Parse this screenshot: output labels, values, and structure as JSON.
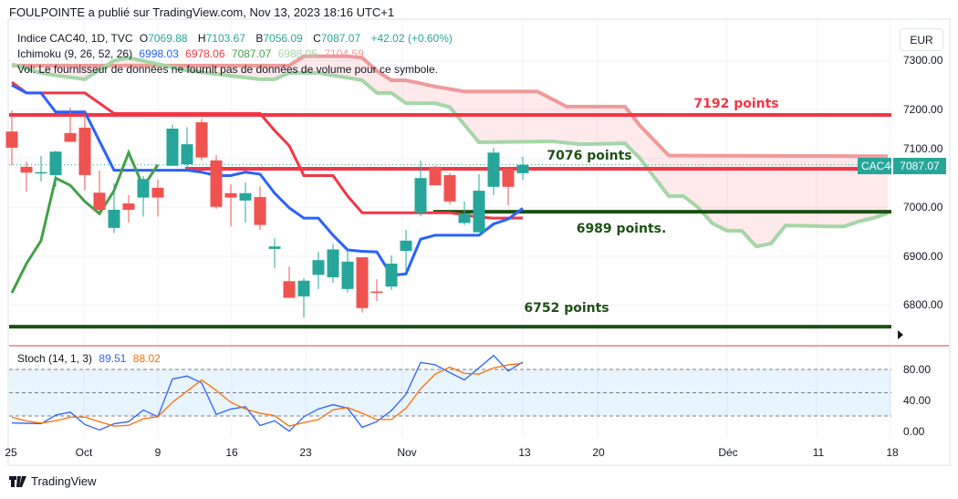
{
  "header": {
    "published": "FOULPOINTE a publié sur TradingView.com, Nov 13, 2023 18:16 UTC+1"
  },
  "legend": {
    "symbol": "Indice CAC40, 1D, TVC",
    "o_label": "O",
    "o": "7069.88",
    "h_label": "H",
    "h": "7103.67",
    "b_label": "B",
    "b": "7056.09",
    "c_label": "C",
    "c": "7087.07",
    "change": "+42.02 (+0.60%)",
    "ichimoku_label": "Ichimoku (9, 26, 52, 26)",
    "ichimoku_values": [
      "6998.03",
      "6978.06",
      "7087.07",
      "6988.05",
      "7104.59"
    ],
    "vol_note": "Vol: Le fournisseur de données ne fournit pas de données de volume pour ce symbole.",
    "stoch_label": "Stoch (14, 1, 3)",
    "stoch_k": "89.51",
    "stoch_d": "88.02"
  },
  "currency_button": "EUR",
  "price_tag": {
    "symbol": "CAC40",
    "value": "7087.07"
  },
  "footer": {
    "brand": "TradingView"
  },
  "colors": {
    "up": "#26a69a",
    "down": "#ef5350",
    "tenkan": "#2962ff",
    "kijun": "#f23645",
    "chikou": "#43a047",
    "senkou_a": "#a5d6a7",
    "senkou_b": "#ef9a9a",
    "stoch_k": "#2962ff",
    "stoch_d": "#ff6d00",
    "level_dark": "#1e5016"
  },
  "chart_data": [
    {
      "type": "candlestick",
      "ylim": [
        6730,
        7320
      ],
      "price_ticks": [
        "7300.00",
        "7200.00",
        "7100.00",
        "7000.00",
        "6900.00",
        "6800.00"
      ],
      "time_ticks": [
        "25",
        "Oct",
        "9",
        "16",
        "23",
        "Nov",
        "13",
        "20",
        "Déc",
        "11",
        "18"
      ],
      "dates": [
        "2023-09-25",
        "2023-09-26",
        "2023-09-27",
        "2023-09-28",
        "2023-09-29",
        "2023-10-02",
        "2023-10-03",
        "2023-10-04",
        "2023-10-05",
        "2023-10-06",
        "2023-10-09",
        "2023-10-10",
        "2023-10-11",
        "2023-10-12",
        "2023-10-13",
        "2023-10-16",
        "2023-10-17",
        "2023-10-18",
        "2023-10-19",
        "2023-10-20",
        "2023-10-23",
        "2023-10-24",
        "2023-10-25",
        "2023-10-26",
        "2023-10-27",
        "2023-10-30",
        "2023-10-31",
        "2023-11-01",
        "2023-11-02",
        "2023-11-03",
        "2023-11-06",
        "2023-11-07",
        "2023-11-08",
        "2023-11-09",
        "2023-11-10",
        "2023-11-13"
      ],
      "ohlc": [
        [
          7155,
          7198,
          7086,
          7122
        ],
        [
          7083,
          7094,
          7032,
          7071
        ],
        [
          7070,
          7105,
          7053,
          7072
        ],
        [
          7066,
          7116,
          7042,
          7114
        ],
        [
          7152,
          7204,
          7134,
          7134
        ],
        [
          7163,
          7196,
          7035,
          7066
        ],
        [
          7030,
          7075,
          6988,
          6995
        ],
        [
          6958,
          7049,
          6947,
          6995
        ],
        [
          7008,
          7025,
          6969,
          6995
        ],
        [
          7020,
          7064,
          6981,
          7058
        ],
        [
          7040,
          7057,
          6981,
          7020
        ],
        [
          7085,
          7169,
          7085,
          7161
        ],
        [
          7088,
          7164,
          7079,
          7129
        ],
        [
          7174,
          7181,
          7096,
          7102
        ],
        [
          7096,
          7107,
          6997,
          7001
        ],
        [
          7029,
          7047,
          6961,
          7020
        ],
        [
          7014,
          7051,
          6969,
          7029
        ],
        [
          7021,
          7043,
          6954,
          6964
        ],
        [
          6915,
          6937,
          6876,
          6920
        ],
        [
          6849,
          6879,
          6815,
          6815
        ],
        [
          6818,
          6855,
          6774,
          6850
        ],
        [
          6862,
          6909,
          6833,
          6892
        ],
        [
          6857,
          6925,
          6846,
          6914
        ],
        [
          6833,
          6914,
          6826,
          6889
        ],
        [
          6898,
          6898,
          6785,
          6794
        ],
        [
          6828,
          6853,
          6808,
          6825
        ],
        [
          6838,
          6902,
          6831,
          6885
        ],
        [
          6911,
          6954,
          6870,
          6932
        ],
        [
          6989,
          7096,
          6982,
          7060
        ],
        [
          7083,
          7085,
          7045,
          7045
        ],
        [
          7066,
          7070,
          7006,
          7012
        ],
        [
          6968,
          7012,
          6964,
          6987
        ],
        [
          6949,
          7068,
          6949,
          7034
        ],
        [
          7042,
          7122,
          7025,
          7112
        ],
        [
          7079,
          7083,
          7004,
          7042
        ],
        [
          7069.88,
          7103.67,
          7056.09,
          7087.07
        ]
      ],
      "last_price": 7087.07,
      "ichimoku": {
        "chikou_shift": 26,
        "tenkan": [
          [
            "2023-09-25",
            7250
          ],
          [
            "2023-09-26",
            7234
          ],
          [
            "2023-09-27",
            7234
          ],
          [
            "2023-09-28",
            7195
          ],
          [
            "2023-10-02",
            7195
          ],
          [
            "2023-10-04",
            7076
          ],
          [
            "2023-10-11",
            7076
          ],
          [
            "2023-10-12",
            7072
          ],
          [
            "2023-10-13",
            7065
          ],
          [
            "2023-10-16",
            7065
          ],
          [
            "2023-10-17",
            7072
          ],
          [
            "2023-10-18",
            7068
          ],
          [
            "2023-10-19",
            7029
          ],
          [
            "2023-10-20",
            6999
          ],
          [
            "2023-10-23",
            6978
          ],
          [
            "2023-10-24",
            6978
          ],
          [
            "2023-10-25",
            6943
          ],
          [
            "2023-10-26",
            6913
          ],
          [
            "2023-10-27",
            6910
          ],
          [
            "2023-10-30",
            6909
          ],
          [
            "2023-10-31",
            6861
          ],
          [
            "2023-11-01",
            6864
          ],
          [
            "2023-11-02",
            6935
          ],
          [
            "2023-11-03",
            6943
          ],
          [
            "2023-11-08",
            6943
          ],
          [
            "2023-11-09",
            6966
          ],
          [
            "2023-11-10",
            6976
          ],
          [
            "2023-11-13",
            6998.03
          ]
        ],
        "kijun": [
          [
            "2023-09-25",
            7256
          ],
          [
            "2023-09-26",
            7234
          ],
          [
            "2023-10-02",
            7234
          ],
          [
            "2023-10-04",
            7192
          ],
          [
            "2023-10-18",
            7192
          ],
          [
            "2023-10-19",
            7157
          ],
          [
            "2023-10-20",
            7126
          ],
          [
            "2023-10-23",
            7065
          ],
          [
            "2023-10-25",
            7065
          ],
          [
            "2023-10-26",
            7023
          ],
          [
            "2023-10-27",
            6989
          ],
          [
            "2023-11-06",
            6989
          ],
          [
            "2023-11-08",
            6980
          ],
          [
            "2023-11-09",
            6978
          ],
          [
            "2023-11-13",
            6978.06
          ]
        ],
        "senkou_a": [
          [
            "2023-09-25",
            7293
          ],
          [
            "2023-09-27",
            7275
          ],
          [
            "2023-09-28",
            7270
          ],
          [
            "2023-10-02",
            7262
          ],
          [
            "2023-10-04",
            7300
          ],
          [
            "2023-10-05",
            7306
          ],
          [
            "2023-10-09",
            7293
          ],
          [
            "2023-10-11",
            7280
          ],
          [
            "2023-10-16",
            7269
          ],
          [
            "2023-10-18",
            7262
          ],
          [
            "2023-10-19",
            7262
          ],
          [
            "2023-10-20",
            7275
          ],
          [
            "2023-10-24",
            7275
          ],
          [
            "2023-10-26",
            7265
          ],
          [
            "2023-10-27",
            7260
          ],
          [
            "2023-10-30",
            7234
          ],
          [
            "2023-10-31",
            7234
          ],
          [
            "2023-11-01",
            7213
          ],
          [
            "2023-11-03",
            7213
          ],
          [
            "2023-11-06",
            7205
          ],
          [
            "2023-11-08",
            7133
          ],
          [
            "2023-11-15",
            7135
          ],
          [
            "2023-11-17",
            7129
          ],
          [
            "2023-11-22",
            7131
          ],
          [
            "2023-11-23",
            7101
          ],
          [
            "2023-11-27",
            7023
          ],
          [
            "2023-11-28",
            7023
          ],
          [
            "2023-11-29",
            7000
          ],
          [
            "2023-11-30",
            6967
          ],
          [
            "2023-12-01",
            6952
          ],
          [
            "2023-12-04",
            6952
          ],
          [
            "2023-12-05",
            6920
          ],
          [
            "2023-12-06",
            6926
          ],
          [
            "2023-12-07",
            6963
          ],
          [
            "2023-12-12",
            6961
          ],
          [
            "2023-12-13",
            6961
          ],
          [
            "2023-12-14",
            6971
          ],
          [
            "2023-12-15",
            6978
          ],
          [
            "2023-12-18",
            6988.05
          ]
        ],
        "senkou_b": [
          [
            "2023-09-25",
            7290
          ],
          [
            "2023-10-20",
            7290
          ],
          [
            "2023-10-23",
            7309
          ],
          [
            "2023-10-26",
            7309
          ],
          [
            "2023-10-27",
            7306
          ],
          [
            "2023-10-30",
            7279
          ],
          [
            "2023-10-31",
            7260
          ],
          [
            "2023-11-01",
            7260
          ],
          [
            "2023-11-03",
            7247
          ],
          [
            "2023-11-07",
            7237
          ],
          [
            "2023-11-14",
            7237
          ],
          [
            "2023-11-16",
            7206
          ],
          [
            "2023-11-22",
            7206
          ],
          [
            "2023-11-23",
            7168
          ],
          [
            "2023-11-27",
            7106
          ],
          [
            "2023-12-18",
            7104.59
          ]
        ]
      },
      "levels": [
        {
          "label": "7192 points",
          "price": 7189,
          "from": "2023-09-25",
          "to": "2023-12-18",
          "color": "#f23645"
        },
        {
          "label": "7076 points",
          "price": 7079,
          "from": "2023-10-11",
          "to": "2023-12-18",
          "color": "#f23645"
        },
        {
          "label": "6989 points.",
          "price": 6991,
          "from": "2023-11-03",
          "to": "2023-12-18",
          "color": "#1e5016"
        },
        {
          "label": "6752 points",
          "price": 6756,
          "from": "2023-09-25",
          "to": "2023-12-18",
          "color": "#1e5016"
        }
      ]
    },
    {
      "type": "line",
      "title": "Stoch (14, 1, 3)",
      "ylim": [
        0,
        100
      ],
      "band": [
        20,
        80
      ],
      "ticks": [
        "80.00",
        "40.00",
        "0.00"
      ],
      "series": [
        {
          "name": "%K",
          "values": [
            11,
            10.5,
            10,
            21,
            25,
            9,
            2,
            10,
            12.7,
            27.7,
            19,
            67.7,
            71.5,
            62.7,
            22,
            29,
            32,
            7.7,
            13.8,
            0.4,
            19,
            29,
            34.6,
            30,
            5.4,
            12.7,
            27,
            48,
            89,
            86,
            76,
            66.5,
            82,
            98,
            78,
            89.51
          ]
        },
        {
          "name": "%D",
          "values": [
            18.5,
            13.5,
            10.8,
            13.8,
            18.5,
            18.5,
            12.7,
            6.9,
            8,
            16.5,
            19,
            37.7,
            52,
            66.5,
            53,
            37.7,
            29,
            23.5,
            20.4,
            6.9,
            11.5,
            15.4,
            28,
            30.8,
            23.5,
            15.4,
            15.4,
            30,
            55,
            74,
            83,
            75,
            74,
            82,
            85.8,
            88.02
          ]
        }
      ]
    }
  ]
}
